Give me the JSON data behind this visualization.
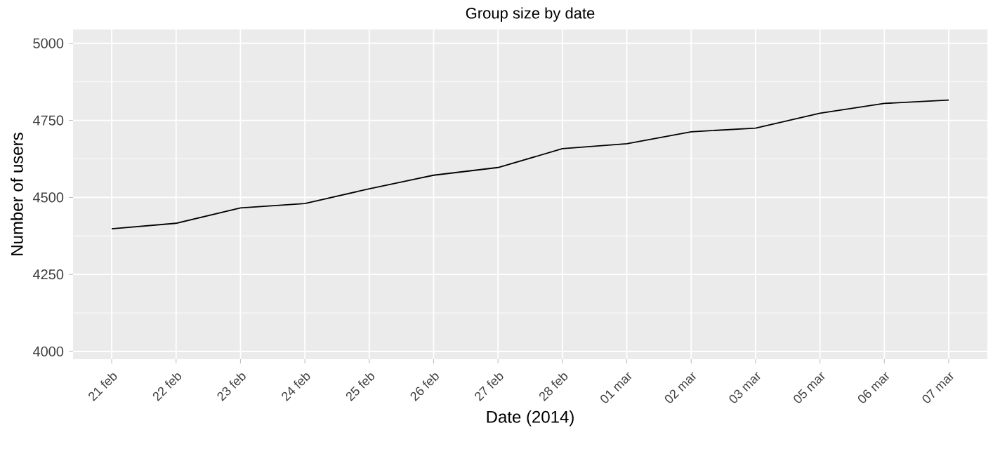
{
  "chart_data": {
    "type": "line",
    "title": "Group size by date",
    "xlabel": "Date (2014)",
    "ylabel": "Number of users",
    "categories": [
      "21 feb",
      "22 feb",
      "23 feb",
      "24 feb",
      "25 feb",
      "26 feb",
      "27 feb",
      "28 feb",
      "01 mar",
      "02 mar",
      "03 mar",
      "05 mar",
      "06 mar",
      "07 mar"
    ],
    "series": [
      {
        "color": "#000000",
        "values": [
          4398,
          4416,
          4466,
          4480,
          4528,
          4572,
          4597,
          4658,
          4674,
          4713,
          4725,
          4773,
          4805,
          4816
        ]
      }
    ],
    "ylim": [
      3975,
      5045
    ],
    "yticks": [
      4000,
      4250,
      4500,
      4750,
      5000
    ],
    "grid": true,
    "line_style": "solid",
    "marker": "none"
  }
}
